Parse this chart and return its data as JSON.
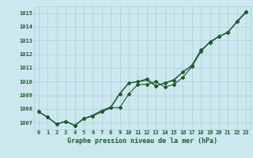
{
  "x": [
    0,
    1,
    2,
    3,
    4,
    5,
    6,
    7,
    8,
    9,
    10,
    11,
    12,
    13,
    14,
    15,
    16,
    17,
    18,
    19,
    20,
    21,
    22,
    23
  ],
  "line1": [
    1007.8,
    1007.4,
    1006.9,
    1007.1,
    1006.8,
    1007.3,
    1007.5,
    1007.8,
    1008.1,
    1008.1,
    1009.1,
    1009.8,
    1009.8,
    1010.0,
    1009.6,
    1009.8,
    1010.3,
    1011.1,
    1012.2,
    1012.9,
    1013.3,
    1013.6,
    1014.4,
    1015.1
  ],
  "line2": [
    1007.8,
    1007.4,
    1006.9,
    1007.1,
    1006.8,
    1007.3,
    1007.5,
    1007.8,
    1008.1,
    1009.1,
    1009.9,
    1010.0,
    1010.2,
    1009.7,
    1009.9,
    1010.1,
    1010.7,
    1011.2,
    1012.3,
    1012.85,
    1013.3,
    1013.6,
    1014.4,
    1015.1
  ],
  "line3": [
    1007.8,
    1007.4,
    1006.9,
    1007.1,
    1006.8,
    1007.3,
    1007.55,
    1007.9,
    1008.15,
    1009.15,
    1009.9,
    1010.0,
    1010.1,
    1009.7,
    1009.9,
    1010.15,
    1010.7,
    1011.15,
    1012.25,
    1012.9,
    1013.3,
    1013.6,
    1014.35,
    1015.05
  ],
  "bg_color": "#cce8ee",
  "grid_color": "#aacdd6",
  "line_color": "#1a5c2a",
  "ylabel_ticks": [
    1007,
    1008,
    1009,
    1010,
    1011,
    1012,
    1013,
    1014,
    1015
  ],
  "xlabel": "Graphe pression niveau de la mer (hPa)",
  "ylim": [
    1006.5,
    1015.5
  ],
  "xlim": [
    -0.5,
    23.5
  ],
  "tick_fontsize": 5.0,
  "xlabel_fontsize": 6.0
}
